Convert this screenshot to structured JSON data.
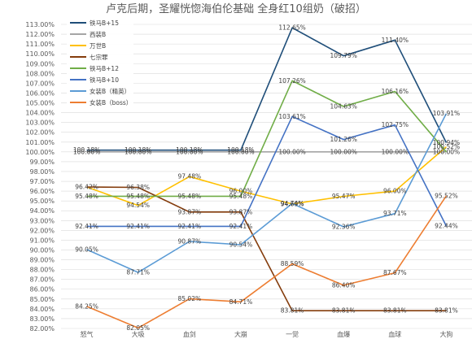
{
  "chart_data": {
    "type": "line",
    "title": "卢克后期，圣耀恍惚海伯伦基础 全身红10组奶（破招）",
    "xlabel": "",
    "ylabel": "",
    "categories": [
      "怒气",
      "大吸",
      "血剑",
      "大崩",
      "一觉",
      "血爆",
      "血球",
      "大狗"
    ],
    "ylim": [
      82.0,
      113.0
    ],
    "ytick_step": 1.0,
    "grid": true,
    "legend_position": "top-center",
    "series": [
      {
        "name": "铁马B+15",
        "color": "#1f4e79",
        "values": [
          100.18,
          100.18,
          100.18,
          100.18,
          112.65,
          109.79,
          111.4,
          100.94
        ]
      },
      {
        "name": "西装B",
        "color": "#a5a5a5",
        "values": [
          100.0,
          100.0,
          100.0,
          100.0,
          100.0,
          100.0,
          100.0,
          100.0
        ]
      },
      {
        "name": "万世B",
        "color": "#ffc000",
        "values": [
          96.42,
          94.54,
          97.48,
          96.0,
          94.69,
          95.47,
          96.0,
          100.52
        ]
      },
      {
        "name": "七宗罪",
        "color": "#843c0c",
        "values": [
          96.42,
          96.38,
          93.87,
          93.87,
          83.81,
          83.81,
          83.81,
          83.81
        ]
      },
      {
        "name": "铁马B+12",
        "color": "#70ad47",
        "values": [
          95.48,
          95.48,
          95.48,
          95.48,
          107.26,
          104.63,
          106.16,
          100.0
        ]
      },
      {
        "name": "铁马B+10",
        "color": "#4472c4",
        "values": [
          92.41,
          92.41,
          92.41,
          92.41,
          103.61,
          101.26,
          102.75,
          92.44
        ]
      },
      {
        "name": "女装B（精英）",
        "color": "#5b9bd5",
        "values": [
          90.05,
          87.71,
          90.87,
          90.54,
          94.74,
          92.36,
          93.71,
          103.91
        ]
      },
      {
        "name": "女装B（boss）",
        "color": "#ed7d31",
        "values": [
          84.25,
          82.05,
          85.02,
          84.71,
          88.59,
          86.4,
          87.67,
          95.52
        ]
      }
    ],
    "data_labels": [
      {
        "series": "铁马B+15",
        "labels": [
          "100.18%",
          "100.18%",
          "100.18%",
          "100.18%",
          "112.65%",
          "109.79%",
          "111.40%",
          "100.94%"
        ]
      },
      {
        "series": "西装B",
        "labels": [
          "100.00%",
          "100.00%",
          "100.00%",
          "100.00%",
          "100.00%",
          "100.00%",
          "100.00%",
          "100.00%"
        ]
      },
      {
        "series": "万世B",
        "labels": [
          "96.42%",
          "94.54%",
          "97.48%",
          "96.00%",
          "94.69%",
          "95.47%",
          "96.00%",
          "100.52%"
        ]
      },
      {
        "series": "七宗罪",
        "labels": [
          "",
          "96.38%",
          "93.87%",
          "93.87%",
          "83.81%",
          "83.81%",
          "83.81%",
          "83.81%"
        ]
      },
      {
        "series": "铁马B+12",
        "labels": [
          "95.48%",
          "95.48%",
          "95.48%",
          "95.48%",
          "107.26%",
          "104.63%",
          "106.16%",
          ""
        ]
      },
      {
        "series": "铁马B+10",
        "labels": [
          "92.41%",
          "92.41%",
          "92.41%",
          "92.41%",
          "103.61%",
          "101.26%",
          "102.75%",
          "92.44%"
        ]
      },
      {
        "series": "女装B（精英）",
        "labels": [
          "90.05%",
          "87.71%",
          "90.87%",
          "90.54%",
          "94.74%",
          "92.36%",
          "93.71%",
          "103.91%"
        ]
      },
      {
        "series": "女装B（boss）",
        "labels": [
          "84.25%",
          "82.05%",
          "85.02%",
          "84.71%",
          "88.59%",
          "86.40%",
          "87.67%",
          "95.52%"
        ]
      }
    ]
  }
}
